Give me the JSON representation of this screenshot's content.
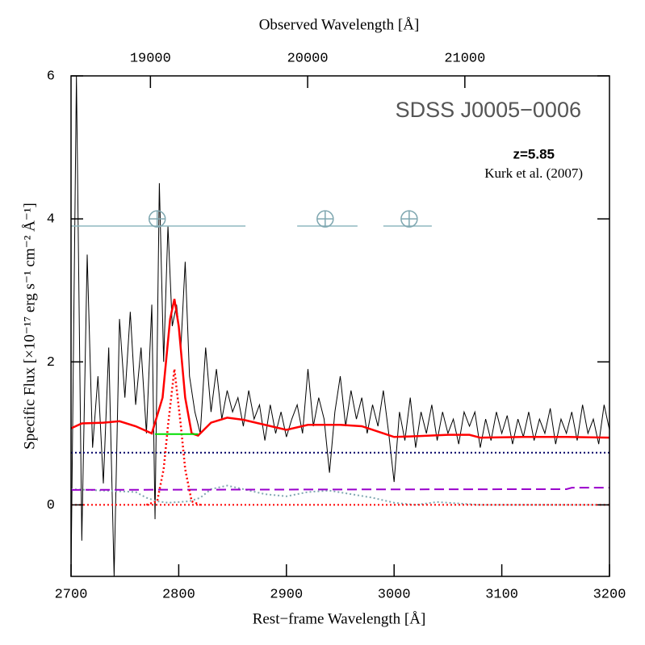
{
  "chart_data": {
    "type": "line",
    "annotations": [
      "SDSS J0005−0006",
      "z=5.85",
      "Kurk et al. (2007)"
    ],
    "xlabel": "Rest−frame Wavelength [Å]",
    "x2label": "Observed Wavelength [Å]",
    "ylabel": "Specific Flux [×10⁻¹⁷ erg s⁻¹ cm⁻² Å⁻¹]",
    "xlim": [
      2700,
      3200
    ],
    "xticks": [
      2700,
      2800,
      2900,
      3000,
      3100,
      3200
    ],
    "x2lim": [
      18495,
      21920
    ],
    "x2ticks": [
      19000,
      20000,
      21000
    ],
    "ylim": [
      -1,
      6
    ],
    "yticks": [
      0,
      2,
      4,
      6
    ],
    "series": [
      {
        "color": "#000000",
        "style": "solid",
        "width": 1,
        "x": [
          2700,
          2705,
          2710,
          2715,
          2720,
          2725,
          2730,
          2735,
          2740,
          2745,
          2750,
          2755,
          2760,
          2765,
          2770,
          2775,
          2778,
          2782,
          2786,
          2790,
          2794,
          2798,
          2802,
          2806,
          2810,
          2815,
          2820,
          2825,
          2830,
          2835,
          2840,
          2845,
          2850,
          2855,
          2860,
          2865,
          2870,
          2875,
          2880,
          2885,
          2890,
          2895,
          2900,
          2905,
          2910,
          2915,
          2920,
          2925,
          2930,
          2935,
          2940,
          2945,
          2950,
          2955,
          2960,
          2965,
          2970,
          2975,
          2980,
          2985,
          2990,
          2995,
          3000,
          3005,
          3010,
          3015,
          3020,
          3025,
          3030,
          3035,
          3040,
          3045,
          3050,
          3055,
          3060,
          3065,
          3070,
          3075,
          3080,
          3085,
          3090,
          3095,
          3100,
          3105,
          3110,
          3115,
          3120,
          3125,
          3130,
          3135,
          3140,
          3145,
          3150,
          3155,
          3160,
          3165,
          3170,
          3175,
          3180,
          3185,
          3190,
          3195,
          3200
        ],
        "values": [
          -1,
          6,
          -0.5,
          3.5,
          0.8,
          1.8,
          0.3,
          2.2,
          -1,
          2.6,
          1.5,
          2.7,
          1.4,
          2.2,
          1.0,
          2.8,
          -0.2,
          4.5,
          2.0,
          3.9,
          2.5,
          2.8,
          2.2,
          3.4,
          1.8,
          1.3,
          1.0,
          2.2,
          1.3,
          1.9,
          1.2,
          1.6,
          1.3,
          1.5,
          1.1,
          1.6,
          1.2,
          1.4,
          0.9,
          1.4,
          1.0,
          1.3,
          0.95,
          1.2,
          1.4,
          1.0,
          1.9,
          1.1,
          1.5,
          1.2,
          0.45,
          1.3,
          1.8,
          1.1,
          1.6,
          1.2,
          1.5,
          1.0,
          1.4,
          1.1,
          1.6,
          1.0,
          0.32,
          1.3,
          0.9,
          1.5,
          0.8,
          1.3,
          1.0,
          1.4,
          0.9,
          1.3,
          1.0,
          1.2,
          0.85,
          1.3,
          1.1,
          1.3,
          0.8,
          1.2,
          0.9,
          1.3,
          1.0,
          1.25,
          0.85,
          1.2,
          0.95,
          1.3,
          0.9,
          1.2,
          1.0,
          1.35,
          0.85,
          1.2,
          1.0,
          1.3,
          0.9,
          1.4,
          1.0,
          1.2,
          0.85,
          1.4,
          1.05
        ]
      },
      {
        "color": "#7fa7b0",
        "style": "dotted",
        "width": 2,
        "x": [
          2700,
          2760,
          2770,
          2780,
          2790,
          2810,
          2820,
          2830,
          2845,
          2860,
          2880,
          2900,
          2920,
          2940,
          2960,
          2980,
          3000,
          3020,
          3040,
          3060,
          3080,
          3200
        ],
        "values": [
          0.22,
          0.18,
          0.1,
          0.05,
          0.03,
          0.05,
          0.1,
          0.22,
          0.27,
          0.22,
          0.15,
          0.12,
          0.18,
          0.2,
          0.15,
          0.1,
          0.03,
          0.0,
          0.04,
          0.02,
          0.0,
          0.0
        ]
      },
      {
        "color": "#9900cc",
        "style": "dashed",
        "width": 2,
        "x": [
          2700,
          3160,
          3165,
          3200
        ],
        "values": [
          0.21,
          0.22,
          0.24,
          0.24
        ]
      },
      {
        "color": "#000066",
        "style": "dotted",
        "width": 2,
        "x": [
          2700,
          3200
        ],
        "values": [
          0.73,
          0.73
        ]
      },
      {
        "color": "#ff0000",
        "style": "dotted",
        "width": 2,
        "x": [
          2700,
          3200
        ],
        "values": [
          0,
          0
        ]
      },
      {
        "color": "#ff0000",
        "style": "dotted",
        "width": 2.5,
        "x": [
          2770,
          2780,
          2786,
          2790,
          2796,
          2802,
          2806,
          2812,
          2820
        ],
        "values": [
          0,
          0.05,
          0.5,
          1.1,
          1.9,
          1.1,
          0.5,
          0.05,
          0
        ]
      },
      {
        "color": "#ff0000",
        "style": "solid",
        "width": 2.5,
        "x": [
          2700,
          2710,
          2730,
          2745,
          2760,
          2775,
          2785,
          2792,
          2796,
          2800,
          2806,
          2812,
          2818,
          2830,
          2845,
          2860,
          2880,
          2900,
          2920,
          2950,
          2970,
          2990,
          3000,
          3020,
          3050,
          3070,
          3080,
          3120,
          3160,
          3200
        ],
        "values": [
          1.07,
          1.14,
          1.15,
          1.17,
          1.1,
          1.0,
          1.5,
          2.6,
          2.88,
          2.5,
          1.5,
          1.0,
          0.97,
          1.15,
          1.22,
          1.19,
          1.12,
          1.05,
          1.12,
          1.12,
          1.1,
          1.0,
          0.95,
          0.96,
          0.98,
          0.98,
          0.94,
          0.95,
          0.95,
          0.94
        ]
      },
      {
        "color": "#00dd00",
        "style": "solid",
        "width": 2,
        "x": [
          2778,
          2818
        ],
        "values": [
          0.99,
          0.99
        ]
      },
      {
        "color": "#8fb8c0",
        "style": "solid",
        "width": 1.5,
        "x": [
          2700,
          2862
        ],
        "values": [
          3.9,
          3.9
        ]
      },
      {
        "color": "#8fb8c0",
        "style": "solid",
        "width": 1.5,
        "x": [
          2910,
          2966
        ],
        "values": [
          3.9,
          3.9
        ]
      },
      {
        "color": "#8fb8c0",
        "style": "solid",
        "width": 1.5,
        "x": [
          2990,
          3035
        ],
        "values": [
          3.9,
          3.9
        ]
      }
    ],
    "markers": {
      "color": "#7fa7b0",
      "x": [
        2780,
        2936,
        3014
      ],
      "values": [
        4.0,
        4.0,
        4.0
      ]
    }
  }
}
